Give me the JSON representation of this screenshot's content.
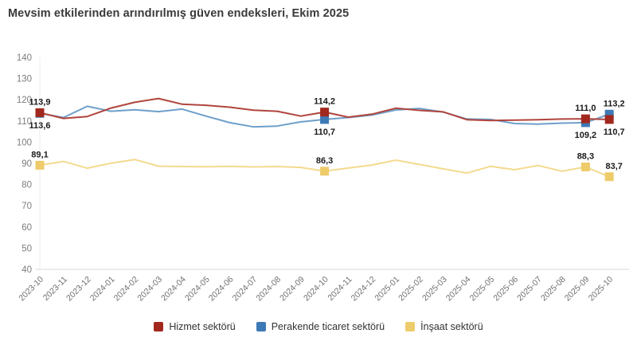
{
  "title": "Mevsim etkilerinden arındırılmış güven endeksleri, Ekim 2025",
  "chart_data": {
    "type": "line",
    "title": "Mevsim etkilerinden arındırılmış güven endeksleri, Ekim 2025",
    "categories": [
      "2023-10",
      "2023-11",
      "2023-12",
      "2024-01",
      "2024-02",
      "2024-03",
      "2024-04",
      "2024-05",
      "2024-06",
      "2024-07",
      "2024-08",
      "2024-09",
      "2024-10",
      "2024-11",
      "2024-12",
      "2025-01",
      "2025-02",
      "2025-03",
      "2025-04",
      "2025-05",
      "2025-06",
      "2025-07",
      "2025-08",
      "2025-09",
      "2025-10"
    ],
    "ylim": [
      40,
      140
    ],
    "ytick_step": 10,
    "grid": false,
    "legend_position": "bottom-center",
    "axis_colors": {
      "axis_line": "#d8d8d8",
      "first_category_line": "#ececec",
      "y_label": "#7d7d7d",
      "x_label": "#6f6f6f",
      "data_label": "#1a1a1a"
    },
    "series": [
      {
        "id": "hizmet",
        "name": "Hizmet sektörü",
        "line_color": "#b0453d",
        "marker_color": "#a1281e",
        "values": [
          113.9,
          111.2,
          112.1,
          116.1,
          118.8,
          120.6,
          117.9,
          117.4,
          116.5,
          115.1,
          114.6,
          112.3,
          114.2,
          111.8,
          113.2,
          116.0,
          115.0,
          114.3,
          110.6,
          110.2,
          110.4,
          110.6,
          110.9,
          111.0,
          110.7
        ],
        "data_labels": [
          {
            "index": 0,
            "text": "113,9",
            "position": "above"
          },
          {
            "index": 12,
            "text": "114,2",
            "position": "above"
          },
          {
            "index": 23,
            "text": "111,0",
            "position": "above"
          },
          {
            "index": 24,
            "text": "110,7",
            "position": "below"
          }
        ]
      },
      {
        "id": "perakende",
        "name": "Perakende ticaret sektörü",
        "line_color": "#6e9fcb",
        "marker_color": "#3d79b5",
        "values": [
          113.6,
          111.6,
          116.9,
          114.6,
          115.3,
          114.4,
          115.6,
          112.3,
          109.2,
          107.2,
          107.6,
          109.6,
          110.7,
          111.6,
          112.8,
          115.2,
          115.9,
          114.2,
          110.9,
          110.7,
          108.8,
          108.5,
          109.0,
          109.2,
          113.2
        ],
        "data_labels": [
          {
            "index": 0,
            "text": "113,6",
            "position": "below"
          },
          {
            "index": 12,
            "text": "110,7",
            "position": "below"
          },
          {
            "index": 23,
            "text": "109,2",
            "position": "below"
          },
          {
            "index": 24,
            "text": "113,2",
            "position": "above"
          }
        ]
      },
      {
        "id": "insaat",
        "name": "İnşaat sektörü",
        "line_color": "#f3da8e",
        "marker_color": "#eecb6b",
        "values": [
          89.1,
          90.9,
          87.7,
          90.1,
          91.8,
          88.7,
          88.5,
          88.4,
          88.6,
          88.3,
          88.5,
          88.1,
          86.3,
          87.8,
          89.2,
          91.5,
          89.5,
          87.4,
          85.4,
          88.6,
          87.0,
          89.0,
          86.3,
          88.3,
          83.7
        ],
        "data_labels": [
          {
            "index": 0,
            "text": "89,1",
            "position": "above"
          },
          {
            "index": 12,
            "text": "86,3",
            "position": "above"
          },
          {
            "index": 23,
            "text": "88,3",
            "position": "above"
          },
          {
            "index": 24,
            "text": "83,7",
            "position": "above"
          }
        ]
      }
    ]
  },
  "legend": {
    "items": [
      {
        "label": "Hizmet sektörü",
        "color": "#a1281e"
      },
      {
        "label": "Perakende ticaret sektörü",
        "color": "#3d79b5"
      },
      {
        "label": "İnşaat sektörü",
        "color": "#eecb6b"
      }
    ]
  }
}
